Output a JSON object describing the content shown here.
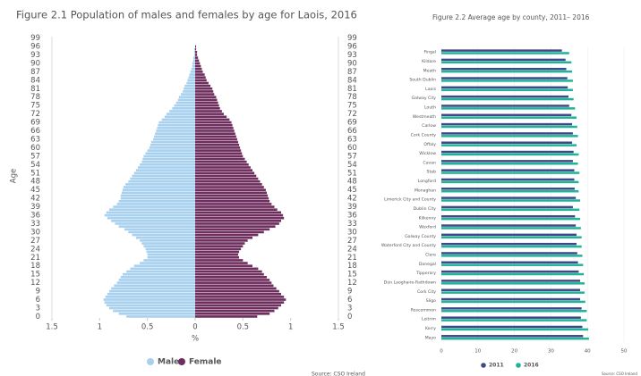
{
  "chart_data": [
    {
      "type": "pyramid",
      "title": "Figure 2.1 Population of males and females by age for Laois, 2016",
      "xlabel": "%",
      "ylabel": "Age",
      "source": "Source: CSO Ireland",
      "categories": [
        "0",
        null,
        null,
        "3",
        null,
        null,
        "6",
        null,
        null,
        "9",
        null,
        null,
        "12",
        null,
        null,
        "15",
        null,
        null,
        "18",
        null,
        null,
        "21",
        null,
        null,
        "24",
        null,
        null,
        "27",
        null,
        null,
        "30",
        null,
        null,
        "33",
        null,
        null,
        "36",
        null,
        null,
        "39",
        null,
        null,
        "42",
        null,
        null,
        "45",
        null,
        null,
        "48",
        null,
        null,
        "51",
        null,
        null,
        "54",
        null,
        null,
        "57",
        null,
        null,
        "60",
        null,
        null,
        "63",
        null,
        null,
        "66",
        null,
        null,
        "69",
        null,
        null,
        "72",
        null,
        null,
        "75",
        null,
        null,
        "78",
        null,
        null,
        "81",
        null,
        null,
        "84",
        null,
        null,
        "87",
        null,
        null,
        "90",
        null,
        null,
        "93",
        null,
        null,
        "96",
        null,
        null,
        "99"
      ],
      "series": [
        {
          "name": "Male",
          "color": "#a8d1f0",
          "values": [
            0.72,
            0.8,
            0.86,
            0.9,
            0.93,
            0.95,
            0.96,
            0.94,
            0.92,
            0.9,
            0.88,
            0.85,
            0.82,
            0.8,
            0.78,
            0.76,
            0.72,
            0.68,
            0.64,
            0.58,
            0.54,
            0.5,
            0.5,
            0.51,
            0.52,
            0.54,
            0.56,
            0.58,
            0.62,
            0.66,
            0.7,
            0.74,
            0.8,
            0.84,
            0.88,
            0.92,
            0.95,
            0.93,
            0.9,
            0.86,
            0.82,
            0.8,
            0.78,
            0.78,
            0.77,
            0.76,
            0.75,
            0.73,
            0.7,
            0.68,
            0.66,
            0.64,
            0.62,
            0.6,
            0.58,
            0.56,
            0.55,
            0.54,
            0.52,
            0.5,
            0.48,
            0.47,
            0.46,
            0.44,
            0.43,
            0.42,
            0.41,
            0.4,
            0.39,
            0.38,
            0.35,
            0.32,
            0.3,
            0.27,
            0.24,
            0.22,
            0.2,
            0.18,
            0.17,
            0.15,
            0.13,
            0.12,
            0.11,
            0.09,
            0.08,
            0.07,
            0.06,
            0.05,
            0.04,
            0.03,
            0.03,
            0.02,
            0.02,
            0.01,
            0.01,
            0.01,
            0,
            0,
            0,
            0
          ]
        },
        {
          "name": "Female",
          "color": "#6e2f5e",
          "values": [
            0.65,
            0.78,
            0.83,
            0.87,
            0.9,
            0.93,
            0.95,
            0.93,
            0.9,
            0.88,
            0.85,
            0.82,
            0.8,
            0.78,
            0.75,
            0.72,
            0.7,
            0.66,
            0.6,
            0.55,
            0.5,
            0.46,
            0.45,
            0.46,
            0.48,
            0.5,
            0.52,
            0.55,
            0.6,
            0.66,
            0.72,
            0.78,
            0.84,
            0.88,
            0.9,
            0.93,
            0.92,
            0.9,
            0.86,
            0.83,
            0.8,
            0.78,
            0.77,
            0.76,
            0.75,
            0.74,
            0.72,
            0.7,
            0.68,
            0.66,
            0.64,
            0.62,
            0.6,
            0.58,
            0.56,
            0.54,
            0.52,
            0.5,
            0.49,
            0.48,
            0.47,
            0.46,
            0.45,
            0.44,
            0.43,
            0.42,
            0.41,
            0.4,
            0.39,
            0.38,
            0.36,
            0.33,
            0.3,
            0.28,
            0.26,
            0.25,
            0.24,
            0.23,
            0.22,
            0.2,
            0.19,
            0.18,
            0.16,
            0.14,
            0.12,
            0.11,
            0.1,
            0.08,
            0.07,
            0.06,
            0.05,
            0.04,
            0.03,
            0.02,
            0.02,
            0.01,
            0.01,
            0,
            0,
            0
          ]
        }
      ],
      "xlim": [
        -1.5,
        1.5
      ],
      "xticks": [
        {
          "value": -1.5,
          "label": "1.5"
        },
        {
          "value": -1,
          "label": "1"
        },
        {
          "value": -0.5,
          "label": "0.5"
        },
        0,
        0.5,
        1,
        1.5
      ]
    },
    {
      "type": "bar",
      "orientation": "horizontal",
      "title": "Figure 2.2 Average age by county, 2011– 2016",
      "source": "Source: CSO Ireland",
      "categories": [
        "Fingal",
        "Kildare",
        "Meath",
        "South Dublin",
        "Laois",
        "Galway City",
        "Louth",
        "Westmeath",
        "Carlow",
        "Cork County",
        "Offaly",
        "Wicklow",
        "Cavan",
        "Stab",
        "Longford",
        "Monaghan",
        "Limerick City and County",
        "Dublin City",
        "Kilkenny",
        "Wexford",
        "Galway County",
        "Waterford City and County",
        "Clare",
        "Donegal",
        "Tipperary",
        "Dún Laoghaire-Rathdown",
        "Cork City",
        "Sligo",
        "Roscommon",
        "Leitrim",
        "Kerry",
        "Mayo"
      ],
      "series": [
        {
          "name": "2011",
          "color": "#3d4a86",
          "values": [
            33.0,
            34.0,
            34.2,
            34.5,
            34.6,
            34.8,
            35.0,
            35.6,
            35.8,
            36.0,
            35.8,
            36.2,
            36.0,
            36.4,
            36.4,
            36.5,
            36.8,
            36.0,
            36.6,
            36.8,
            37.0,
            37.0,
            37.2,
            37.4,
            37.6,
            38.0,
            38.0,
            38.0,
            38.4,
            38.2,
            38.6,
            38.8
          ]
        },
        {
          "name": "2016",
          "color": "#1fb39a",
          "values": [
            35.0,
            35.6,
            35.8,
            36.0,
            36.0,
            36.2,
            36.6,
            37.0,
            37.2,
            37.4,
            37.0,
            37.6,
            37.4,
            37.8,
            37.6,
            37.6,
            38.0,
            37.8,
            38.0,
            38.2,
            38.4,
            38.4,
            38.6,
            38.8,
            39.0,
            39.2,
            39.2,
            39.4,
            39.8,
            39.8,
            40.2,
            40.4
          ]
        }
      ],
      "xlim": [
        0,
        50
      ],
      "xticks": [
        0,
        10,
        20,
        30,
        40,
        50
      ],
      "grid": true
    }
  ]
}
